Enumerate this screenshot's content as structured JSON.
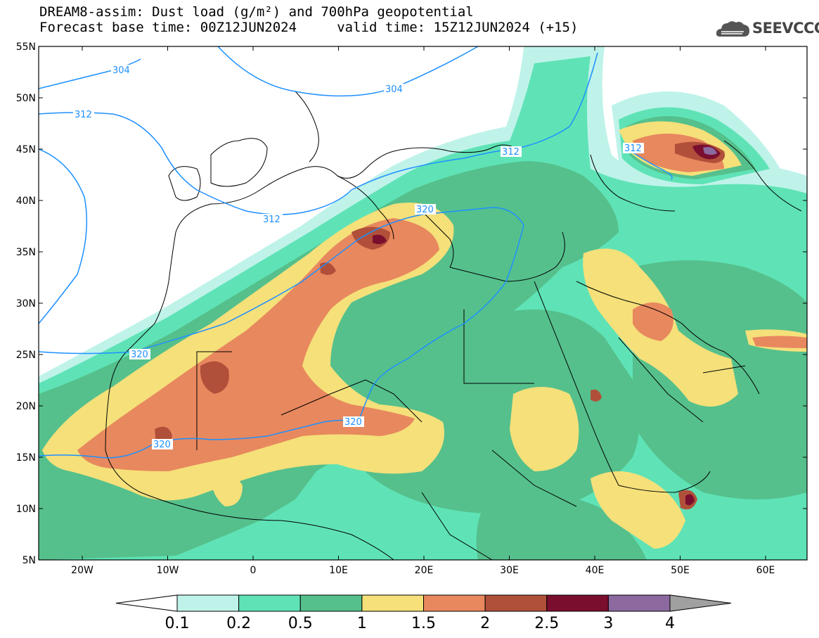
{
  "header": {
    "title_line1": "DREAM8-assim: Dust load (g/m²) and 700hPa geopotential",
    "title_line2": "Forecast base time: 00Z12JUN2024     valid time: 15Z12JUN2024 (+15)"
  },
  "logo": {
    "text": "SEEVCCC",
    "icon": "cloud-logo-icon"
  },
  "axes": {
    "lat_labels": [
      "55N",
      "50N",
      "45N",
      "40N",
      "35N",
      "30N",
      "25N",
      "20N",
      "15N",
      "10N",
      "5N"
    ],
    "lon_labels": [
      "20W",
      "10W",
      "0",
      "10E",
      "20E",
      "30E",
      "40E",
      "50E",
      "60E"
    ]
  },
  "contours": [
    {
      "label": "304"
    },
    {
      "label": "304"
    },
    {
      "label": "312"
    },
    {
      "label": "312"
    },
    {
      "label": "312"
    },
    {
      "label": "312"
    },
    {
      "label": "320"
    },
    {
      "label": "320"
    },
    {
      "label": "320"
    },
    {
      "label": "320"
    }
  ],
  "colorbar": {
    "labels": [
      "0.1",
      "0.2",
      "0.5",
      "1",
      "1.5",
      "2",
      "2.5",
      "3",
      "4"
    ],
    "colors": [
      "#ffffff",
      "#bff3ea",
      "#5fe3b6",
      "#55c08c",
      "#f5e07a",
      "#e8885e",
      "#b0503a",
      "#7a0e2e",
      "#8c6aa0",
      "#a0a0a0"
    ]
  },
  "palette": {
    "c01": "#bff3ea",
    "c02": "#5fe3b6",
    "c05": "#55c08c",
    "c1": "#f5e07a",
    "c15": "#e8885e",
    "c2": "#b0503a",
    "c25": "#7a0e2e",
    "c3": "#8c6aa0",
    "contour": "#1e90ff"
  }
}
